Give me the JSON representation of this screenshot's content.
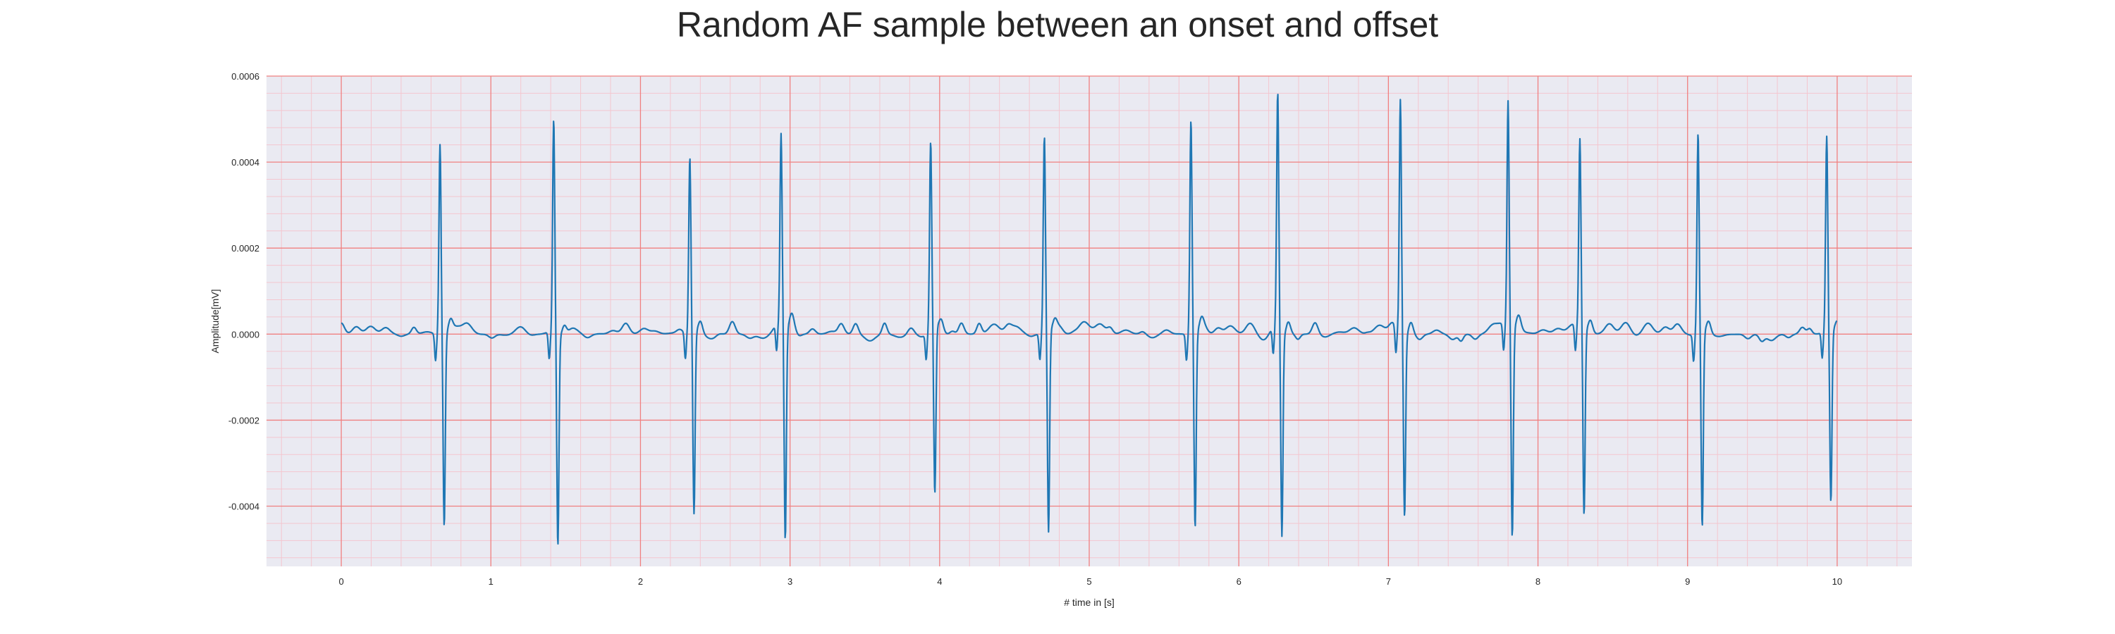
{
  "chart_data": {
    "type": "line",
    "title": "Random AF sample between an onset and offset",
    "xlabel": "# time in [s]",
    "ylabel": "Amplitude[mV]",
    "xlim": [
      -0.5,
      10.5
    ],
    "ylim": [
      -0.00054,
      0.0006
    ],
    "x_ticks": [
      0,
      1,
      2,
      3,
      4,
      5,
      6,
      7,
      8,
      9,
      10
    ],
    "y_ticks": [
      -0.0004,
      -0.0002,
      0.0,
      0.0002,
      0.0004,
      0.0006
    ],
    "y_tick_labels": [
      "-0.0004",
      "-0.0002",
      "0.0000",
      "0.0002",
      "0.0004",
      "0.0006"
    ],
    "grid": true,
    "minor_grid": true,
    "colors": {
      "line": "#1f77b4",
      "plot_background": "#eaeaf2",
      "major_grid": "#f08080",
      "minor_grid": "#f4c6cf"
    },
    "series": [
      {
        "values_description_free": true,
        "r_peaks": [
          {
            "t": 0.66,
            "peak": 0.00045,
            "trough": -0.00044
          },
          {
            "t": 1.42,
            "peak": 0.0005,
            "trough": -0.00049
          },
          {
            "t": 2.33,
            "peak": 0.00041,
            "trough": -0.00042
          },
          {
            "t": 2.94,
            "peak": 0.000445,
            "trough": -0.00049
          },
          {
            "t": 3.94,
            "peak": 0.000435,
            "trough": -0.00039
          },
          {
            "t": 4.7,
            "peak": 0.000455,
            "trough": -0.00047
          },
          {
            "t": 5.68,
            "peak": 0.0005,
            "trough": -0.00045
          },
          {
            "t": 6.26,
            "peak": 0.00055,
            "trough": -0.00047
          },
          {
            "t": 7.08,
            "peak": 0.000545,
            "trough": -0.00042
          },
          {
            "t": 7.8,
            "peak": 0.00053,
            "trough": -0.00048
          },
          {
            "t": 8.28,
            "peak": 0.00044,
            "trough": -0.00043
          },
          {
            "t": 9.07,
            "peak": 0.00047,
            "trough": -0.00045
          },
          {
            "t": 9.93,
            "peak": 0.00045,
            "trough": -0.0004
          }
        ],
        "t_start": 0.0,
        "t_end": 10.0
      }
    ]
  }
}
